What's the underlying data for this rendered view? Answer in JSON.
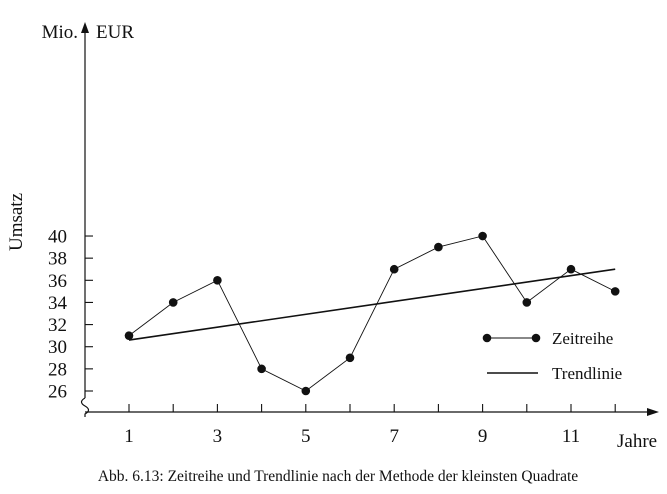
{
  "chart_data": {
    "type": "line",
    "caption": "Abb. 6.13: Zeitreihe und Trendlinie nach der Methode der kleinsten Quadrate",
    "y_unit_top": "Mio.",
    "y_unit_right": "EUR",
    "ylabel": "Umsatz",
    "xlabel": "Jahre",
    "ylim": [
      26,
      40
    ],
    "xlim": [
      1,
      12
    ],
    "y_ticks": [
      26,
      28,
      30,
      32,
      34,
      36,
      38,
      40
    ],
    "x_ticks": [
      1,
      2,
      3,
      4,
      5,
      6,
      7,
      8,
      9,
      10,
      11,
      12
    ],
    "x_tick_labels": [
      1,
      3,
      5,
      7,
      9,
      11
    ],
    "y_axis_break": true,
    "grid": false,
    "legend_position": "bottom-right",
    "series": [
      {
        "name": "Zeitreihe",
        "style": "line-with-markers",
        "x": [
          1,
          2,
          3,
          4,
          5,
          6,
          7,
          8,
          9,
          10,
          11,
          12
        ],
        "values": [
          31,
          34,
          36,
          28,
          26,
          29,
          37,
          39,
          40,
          34,
          37,
          35
        ]
      },
      {
        "name": "Trendlinie",
        "style": "line",
        "x": [
          1,
          12
        ],
        "values": [
          30.6,
          37.0
        ]
      }
    ]
  }
}
